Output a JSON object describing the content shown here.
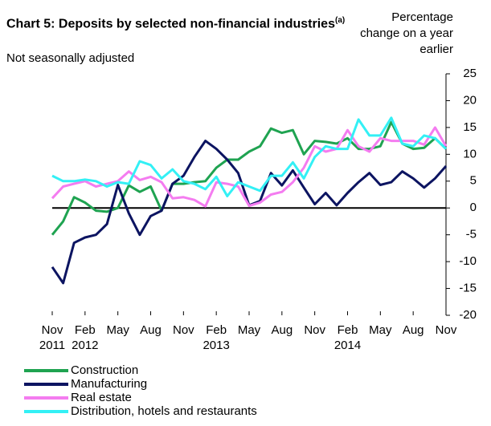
{
  "chart_data": {
    "type": "line",
    "title": "Chart 5: Deposits by selected non-financial industries",
    "title_note": "(a)",
    "subtitle": "Not seasonally adjusted",
    "y_label": "Percentage change on a year earlier",
    "categories": [
      "Nov 2011",
      null,
      null,
      "Feb 2012",
      null,
      null,
      "May",
      null,
      null,
      "Aug",
      null,
      null,
      "Nov",
      null,
      null,
      "Feb 2013",
      null,
      null,
      "May",
      null,
      null,
      "Aug",
      null,
      null,
      "Nov",
      null,
      null,
      "Feb 2014",
      null,
      null,
      "May",
      null,
      null,
      "Aug",
      null,
      null,
      "Nov"
    ],
    "ylim": [
      -20,
      25
    ],
    "yticks": [
      25,
      20,
      15,
      10,
      5,
      0,
      -5,
      -10,
      -15,
      -20
    ],
    "series": [
      {
        "name": "Construction",
        "color": "#1fa351",
        "values": [
          -5,
          -2.5,
          2,
          1,
          -0.5,
          -0.7,
          0,
          4.2,
          3,
          4,
          -0.5,
          4.5,
          4.5,
          4.8,
          5,
          7.5,
          9,
          9,
          10.5,
          11.5,
          14.8,
          14,
          14.5,
          10,
          12.5,
          12.3,
          12,
          13,
          11,
          11,
          11.5,
          16,
          12,
          11,
          11.2,
          13,
          11
        ]
      },
      {
        "name": "Manufacturing",
        "color": "#0c1461",
        "values": [
          -11,
          -14,
          -6.5,
          -5.5,
          -5,
          -3,
          4.3,
          -1,
          -5,
          -1.5,
          -0.5,
          4.5,
          6,
          9.5,
          12.5,
          11,
          9,
          6.5,
          0.5,
          1.3,
          6.5,
          4.2,
          7,
          3.8,
          0.7,
          2.8,
          0.5,
          2.8,
          4.8,
          6.5,
          4.3,
          4.8,
          6.8,
          5.5,
          3.8,
          5.5,
          7.8
        ]
      },
      {
        "name": "Real estate",
        "color": "#f47cf0",
        "values": [
          1.8,
          4,
          4.5,
          5,
          4,
          4.5,
          5,
          6.8,
          5.2,
          5.8,
          4.8,
          1.8,
          2,
          1.5,
          0.3,
          4.8,
          4.5,
          4,
          0.4,
          1,
          2.5,
          3,
          4.8,
          7.5,
          11.5,
          10.5,
          11,
          14.5,
          11.5,
          10.5,
          13,
          12.5,
          12.5,
          12.5,
          11.8,
          15,
          11.5
        ]
      },
      {
        "name": "Distribution, hotels and restaurants",
        "color": "#33f0f5",
        "values": [
          6,
          5,
          5,
          5.3,
          5,
          4,
          4.8,
          4.5,
          8.7,
          8,
          5.5,
          7.2,
          5,
          4.5,
          3.5,
          5.8,
          2.2,
          4.8,
          4,
          3.2,
          6,
          6,
          8.5,
          5.5,
          9.5,
          11.5,
          11,
          11,
          16.5,
          13.5,
          13.5,
          16.8,
          12,
          11.5,
          13.5,
          13,
          11
        ]
      }
    ]
  }
}
